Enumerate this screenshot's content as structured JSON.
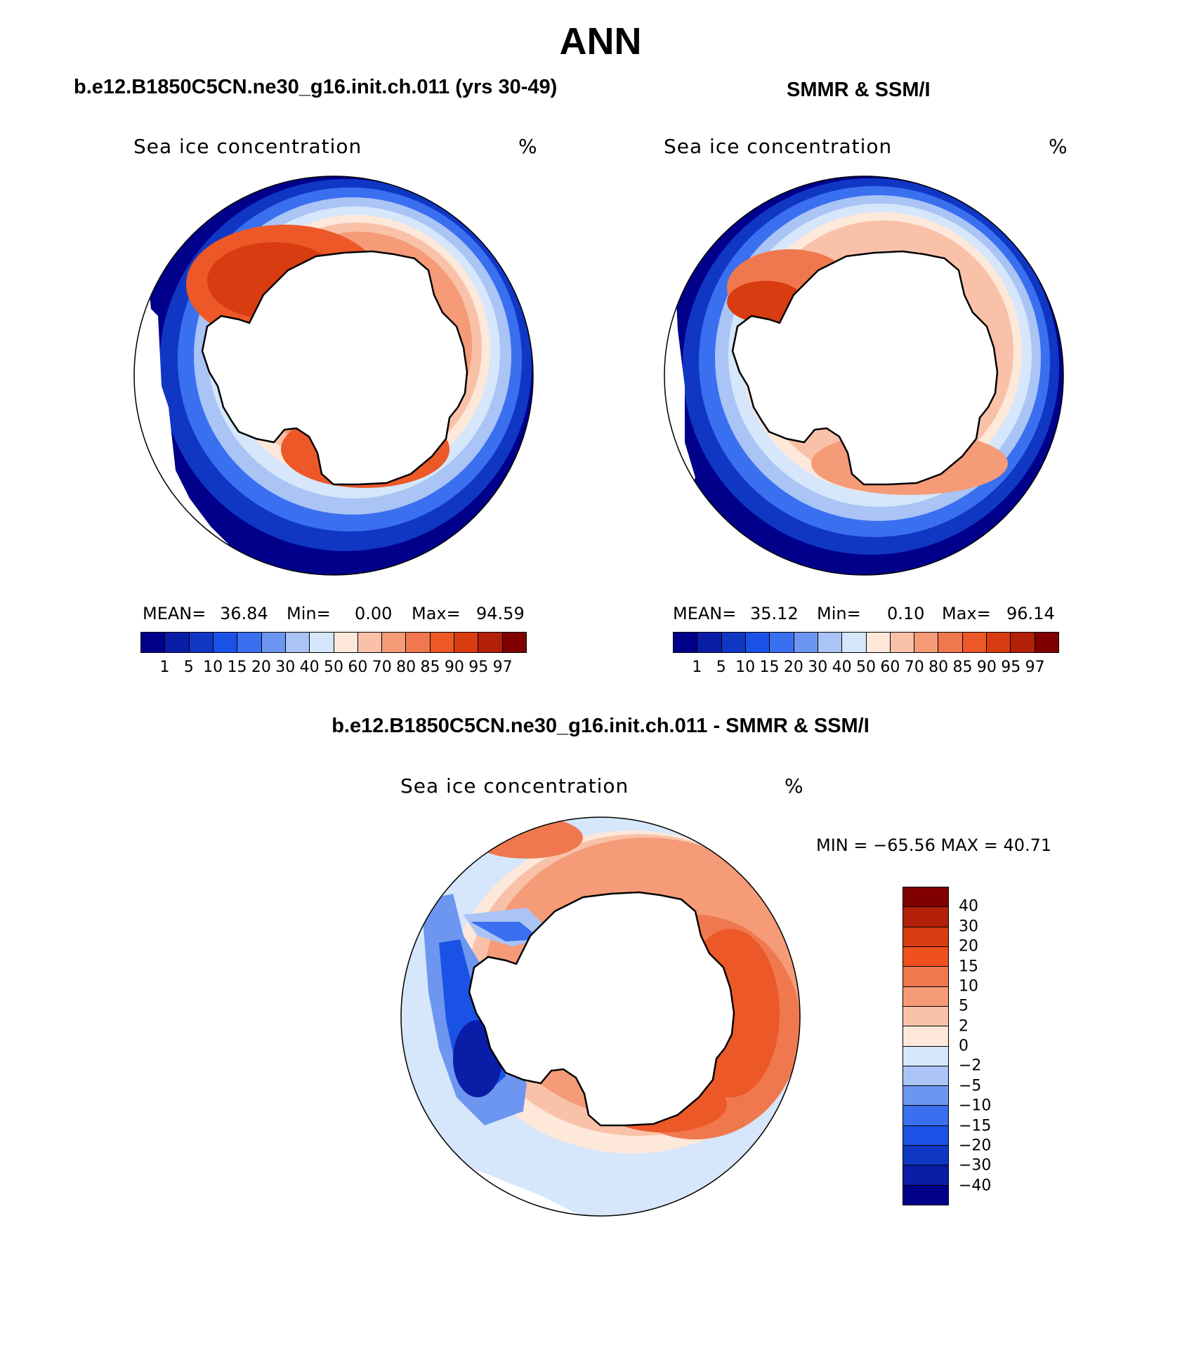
{
  "title": "ANN",
  "colors": {
    "conc_scale": [
      "#00008b",
      "#0a1da6",
      "#0f37c4",
      "#1a52e6",
      "#3a6ff0",
      "#6d96f0",
      "#a9c4f5",
      "#d6e6fb",
      "#fde8da",
      "#f9c2a8",
      "#f59b78",
      "#f0784f",
      "#ec5828",
      "#d93c10",
      "#b3200a",
      "#800000"
    ],
    "diff_scale": [
      "#800000",
      "#b3200a",
      "#d93c10",
      "#f0501e",
      "#f0784f",
      "#f59b78",
      "#f9c2a8",
      "#fde8da",
      "#d6e6fb",
      "#a9c4f5",
      "#6d96f0",
      "#3a6ff0",
      "#1a52e6",
      "#0f37c4",
      "#0a1da6",
      "#00008b"
    ],
    "land": "#ffffff",
    "coast": "#000000"
  },
  "panels": {
    "model": {
      "title": "b.e12.B1850C5CN.ne30_g16.init.ch.011 (yrs 30-49)",
      "label": "Sea ice concentration",
      "units": "%",
      "mean_label": "MEAN=",
      "mean": "36.84",
      "min_label": "Min=",
      "min": "0.00",
      "max_label": "Max=",
      "max": "94.59",
      "ticks": [
        "1",
        "5",
        "10",
        "15",
        "20",
        "30",
        "40",
        "50",
        "60",
        "70",
        "80",
        "85",
        "90",
        "95",
        "97"
      ]
    },
    "obs": {
      "title": "SMMR & SSM/I",
      "label": "Sea ice concentration",
      "units": "%",
      "mean_label": "MEAN=",
      "mean": "35.12",
      "min_label": "Min=",
      "min": "0.10",
      "max_label": "Max=",
      "max": "96.14",
      "ticks": [
        "1",
        "5",
        "10",
        "15",
        "20",
        "30",
        "40",
        "50",
        "60",
        "70",
        "80",
        "85",
        "90",
        "95",
        "97"
      ]
    },
    "diff": {
      "title": "b.e12.B1850C5CN.ne30_g16.init.ch.011 - SMMR & SSM/I",
      "label": "Sea ice concentration",
      "units": "%",
      "minmax": "MIN = −65.56 MAX =   40.71",
      "ticks": [
        "40",
        "30",
        "20",
        "15",
        "10",
        "5",
        "2",
        "0",
        "−2",
        "−5",
        "−10",
        "−15",
        "−20",
        "−30",
        "−40"
      ]
    }
  }
}
